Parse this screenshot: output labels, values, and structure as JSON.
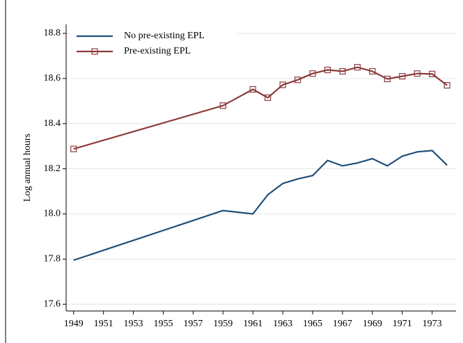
{
  "chart_data": {
    "type": "line",
    "y_label": "Log annual hours",
    "x": [
      1949,
      1959,
      1961,
      1962,
      1963,
      1964,
      1965,
      1966,
      1967,
      1968,
      1969,
      1970,
      1971,
      1972,
      1973,
      1974
    ],
    "series": [
      {
        "name": "No pre-existing EPL",
        "color": "#1f4e79",
        "marker": "none",
        "values": [
          17.795,
          18.015,
          18.0,
          18.085,
          18.135,
          18.155,
          18.17,
          18.237,
          18.213,
          18.226,
          18.245,
          18.213,
          18.256,
          18.275,
          18.281,
          18.216
        ]
      },
      {
        "name": "Pre-existing EPL",
        "color": "#8b3a3a",
        "marker": "square",
        "values": [
          18.288,
          18.48,
          18.552,
          18.515,
          18.572,
          18.594,
          18.622,
          18.638,
          18.632,
          18.65,
          18.632,
          18.598,
          18.61,
          18.622,
          18.62,
          18.57
        ]
      }
    ],
    "xlim": [
      1948.5,
      1974.6
    ],
    "xticks": [
      1949,
      1951,
      1953,
      1955,
      1957,
      1959,
      1961,
      1963,
      1965,
      1967,
      1969,
      1971,
      1973
    ],
    "ylim": [
      17.57,
      18.84
    ],
    "yticks": [
      {
        "value": 17.6,
        "label": "17.6"
      },
      {
        "value": 17.8,
        "label": "17.8"
      },
      {
        "value": 18.0,
        "label": "18.0"
      },
      {
        "value": 18.2,
        "label": "18.2"
      },
      {
        "value": 18.4,
        "label": "18.4"
      },
      {
        "value": 18.6,
        "label": "18.6"
      },
      {
        "value": 18.8,
        "label": "18.8"
      }
    ],
    "grid": true,
    "legend": "top-left"
  }
}
